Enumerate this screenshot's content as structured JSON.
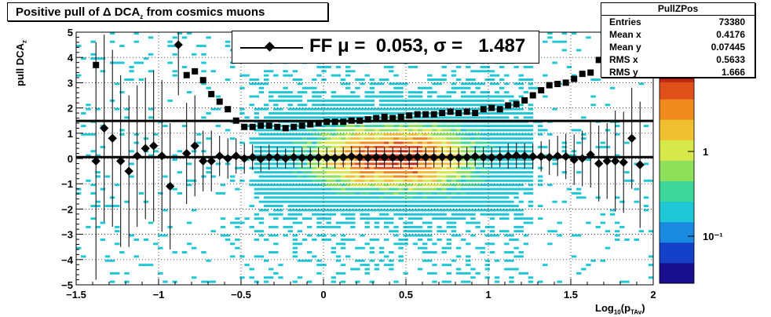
{
  "title": "Positive pull of Δ DCA",
  "title_sub": "z",
  "title_tail": " from cosmics muons",
  "ylabel": "pull DCA",
  "ylabel_sub": "z",
  "xlabel_pre": "Log",
  "xlabel_sub1": "10",
  "xlabel_mid": "(p",
  "xlabel_sub2": "TAv",
  "xlabel_post": ")",
  "fit_label": "FF μ =  0.053, σ =   1.487",
  "stats": {
    "name": "PullZPos",
    "rows": [
      {
        "label": "Entries",
        "value": "73380"
      },
      {
        "label": "Mean x",
        "value": "0.4176"
      },
      {
        "label": "Mean y",
        "value": "0.07445"
      },
      {
        "label": "RMS x",
        "value": "0.5633"
      },
      {
        "label": "RMS y",
        "value": "1.666"
      }
    ]
  },
  "chart_data": {
    "type": "heatmap",
    "xlim": [
      -1.5,
      2
    ],
    "ylim": [
      -5,
      5
    ],
    "x_ticks": [
      "−1.5",
      "−1",
      "−0.5",
      "0",
      "0.5",
      "1",
      "1.5",
      "2"
    ],
    "y_ticks": [
      "−5",
      "−4",
      "−3",
      "−2",
      "−1",
      "0",
      "1",
      "2",
      "3",
      "4",
      "5"
    ],
    "z_ticks": [
      "1",
      "10⁻¹"
    ],
    "z_scale": "log",
    "mean_line_y": 0.053,
    "sigma_line_y": 1.487,
    "mean_points": [
      [
        -1.38,
        -0.1,
        4.7
      ],
      [
        -1.33,
        1.2,
        3.7
      ],
      [
        -1.28,
        0.8,
        3.5
      ],
      [
        -1.23,
        -0.1,
        3.4
      ],
      [
        -1.18,
        -0.5,
        3
      ],
      [
        -1.13,
        0.1,
        2.8
      ],
      [
        -1.08,
        0.4,
        2.8
      ],
      [
        -1.03,
        0.5,
        3
      ],
      [
        -0.98,
        0.1,
        3
      ],
      [
        -0.93,
        -1.1,
        2.5
      ],
      [
        -0.88,
        4.5,
        2
      ],
      [
        -0.83,
        0.2,
        2
      ],
      [
        -0.78,
        0.5,
        2
      ],
      [
        -0.73,
        -0.1,
        1.2
      ],
      [
        -0.68,
        -0.1,
        1.2
      ],
      [
        -0.63,
        0.1,
        0.8
      ],
      [
        -0.58,
        0,
        0.8
      ],
      [
        -0.53,
        0.1,
        0.7
      ],
      [
        -0.48,
        0,
        0.6
      ],
      [
        -0.43,
        0.05,
        0.5
      ],
      [
        -0.38,
        -0.02,
        0.5
      ],
      [
        -0.33,
        0.05,
        0.5
      ],
      [
        -0.28,
        0.05,
        0.4
      ],
      [
        -0.23,
        0,
        0.4
      ],
      [
        -0.18,
        0.05,
        0.4
      ],
      [
        -0.13,
        0.03,
        0.4
      ],
      [
        -0.08,
        0.03,
        0.4
      ],
      [
        -0.03,
        0.04,
        0.4
      ],
      [
        0.02,
        0.03,
        0.4
      ],
      [
        0.07,
        0.02,
        0.4
      ],
      [
        0.12,
        0.05,
        0.4
      ],
      [
        0.17,
        0.08,
        0.4
      ],
      [
        0.22,
        0.05,
        0.4
      ],
      [
        0.27,
        0.03,
        0.4
      ],
      [
        0.32,
        0.05,
        0.4
      ],
      [
        0.37,
        0.05,
        0.4
      ],
      [
        0.42,
        0.04,
        0.4
      ],
      [
        0.47,
        0.03,
        0.4
      ],
      [
        0.52,
        0.05,
        0.4
      ],
      [
        0.57,
        0.06,
        0.4
      ],
      [
        0.62,
        0.05,
        0.4
      ],
      [
        0.67,
        0.04,
        0.4
      ],
      [
        0.72,
        0.06,
        0.4
      ],
      [
        0.77,
        0.05,
        0.4
      ],
      [
        0.82,
        0.03,
        0.4
      ],
      [
        0.87,
        0.05,
        0.4
      ],
      [
        0.92,
        0.08,
        0.4
      ],
      [
        0.97,
        0.05,
        0.4
      ],
      [
        1.02,
        0.04,
        0.4
      ],
      [
        1.07,
        0.06,
        0.4
      ],
      [
        1.12,
        0.1,
        0.5
      ],
      [
        1.17,
        0.12,
        0.5
      ],
      [
        1.22,
        0.1,
        0.5
      ],
      [
        1.27,
        0.08,
        0.5
      ],
      [
        1.32,
        0.08,
        0.6
      ],
      [
        1.37,
        0.05,
        0.7
      ],
      [
        1.42,
        0.1,
        0.8
      ],
      [
        1.47,
        0.08,
        0.9
      ],
      [
        1.52,
        -0.05,
        1
      ],
      [
        1.57,
        0,
        1.1
      ],
      [
        1.62,
        0.15,
        1.3
      ],
      [
        1.67,
        -0.2,
        1.5
      ],
      [
        1.72,
        -0.1,
        1.5
      ],
      [
        1.77,
        -0.1,
        2
      ],
      [
        1.82,
        -0.15,
        2
      ],
      [
        1.87,
        0.8,
        2
      ],
      [
        1.92,
        -0.25,
        2.5
      ]
    ],
    "sigma_points": [
      [
        -1.38,
        3.7
      ],
      [
        -0.83,
        3.3
      ],
      [
        -0.78,
        3.45
      ],
      [
        -0.73,
        3.1
      ],
      [
        -0.68,
        2.55
      ],
      [
        -0.63,
        2.25
      ],
      [
        -0.58,
        1.95
      ],
      [
        -0.53,
        1.5
      ],
      [
        -0.48,
        1.25
      ],
      [
        -0.43,
        1.25
      ],
      [
        -0.38,
        1.3
      ],
      [
        -0.33,
        1.3
      ],
      [
        -0.28,
        1.25
      ],
      [
        -0.23,
        1.2
      ],
      [
        -0.18,
        1.25
      ],
      [
        -0.13,
        1.3
      ],
      [
        -0.08,
        1.35
      ],
      [
        -0.03,
        1.4
      ],
      [
        0.02,
        1.45
      ],
      [
        0.07,
        1.45
      ],
      [
        0.12,
        1.45
      ],
      [
        0.17,
        1.5
      ],
      [
        0.22,
        1.5
      ],
      [
        0.27,
        1.55
      ],
      [
        0.32,
        1.6
      ],
      [
        0.37,
        1.65
      ],
      [
        0.42,
        1.6
      ],
      [
        0.47,
        1.65
      ],
      [
        0.52,
        1.7
      ],
      [
        0.57,
        1.75
      ],
      [
        0.62,
        1.75
      ],
      [
        0.67,
        1.75
      ],
      [
        0.72,
        1.8
      ],
      [
        0.77,
        1.85
      ],
      [
        0.82,
        1.8
      ],
      [
        0.87,
        1.85
      ],
      [
        0.92,
        1.8
      ],
      [
        0.97,
        1.95
      ],
      [
        1.02,
        2.0
      ],
      [
        1.07,
        1.95
      ],
      [
        1.12,
        2.1
      ],
      [
        1.17,
        2.15
      ],
      [
        1.22,
        2.3
      ],
      [
        1.27,
        2.5
      ],
      [
        1.32,
        2.7
      ],
      [
        1.37,
        2.9
      ],
      [
        1.42,
        2.95
      ],
      [
        1.47,
        3.0
      ],
      [
        1.52,
        3.15
      ],
      [
        1.57,
        3.35
      ],
      [
        1.62,
        3.4
      ],
      [
        1.67,
        3.9
      ],
      [
        1.72,
        4.0
      ],
      [
        1.77,
        4.7
      ]
    ]
  }
}
